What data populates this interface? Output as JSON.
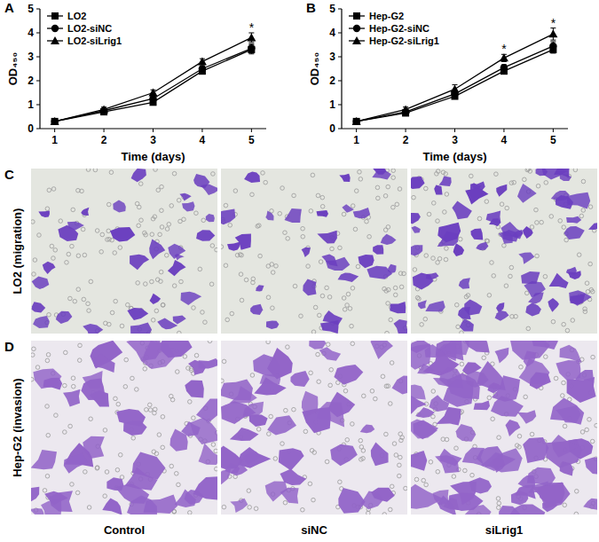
{
  "chart_data": [
    {
      "type": "line",
      "panel": "A",
      "y_label": "OD₄₅₀",
      "x_label": "Time (days)",
      "x": [
        1,
        2,
        3,
        4,
        5
      ],
      "xlim": [
        0.7,
        5.3
      ],
      "xticks": [
        1,
        2,
        3,
        4,
        5
      ],
      "ylim": [
        0,
        5
      ],
      "yticks": [
        0,
        1,
        2,
        3,
        4,
        5
      ],
      "legend": "upper left",
      "series": [
        {
          "name": "LO2",
          "color": "#000000",
          "marker": "square",
          "values": [
            0.3,
            0.7,
            1.1,
            2.4,
            3.3
          ],
          "errors": [
            0.05,
            0.08,
            0.1,
            0.12,
            0.18
          ]
        },
        {
          "name": "LO2-siNC",
          "color": "#000000",
          "marker": "circle",
          "values": [
            0.3,
            0.75,
            1.25,
            2.5,
            3.35
          ],
          "errors": [
            0.05,
            0.08,
            0.12,
            0.12,
            0.18
          ]
        },
        {
          "name": "LO2-siLrig1",
          "color": "#000000",
          "marker": "triangle",
          "values": [
            0.3,
            0.8,
            1.5,
            2.8,
            3.8
          ],
          "errors": [
            0.05,
            0.1,
            0.12,
            0.12,
            0.2
          ]
        }
      ],
      "annotations": [
        {
          "x": 5,
          "text": "*"
        }
      ]
    },
    {
      "type": "line",
      "panel": "B",
      "y_label": "OD₄₅₀",
      "x_label": "Time (days)",
      "x": [
        1,
        2,
        3,
        4,
        5
      ],
      "xlim": [
        0.7,
        5.3
      ],
      "xticks": [
        1,
        2,
        3,
        4,
        5
      ],
      "ylim": [
        0,
        5
      ],
      "yticks": [
        0,
        1,
        2,
        3,
        4,
        5
      ],
      "legend": "upper left",
      "series": [
        {
          "name": "Hep-G2",
          "color": "#000000",
          "marker": "square",
          "values": [
            0.3,
            0.65,
            1.35,
            2.4,
            3.3
          ],
          "errors": [
            0.05,
            0.08,
            0.1,
            0.12,
            0.15
          ]
        },
        {
          "name": "Hep-G2-siNC",
          "color": "#000000",
          "marker": "circle",
          "values": [
            0.3,
            0.7,
            1.45,
            2.55,
            3.45
          ],
          "errors": [
            0.05,
            0.08,
            0.12,
            0.12,
            0.18
          ]
        },
        {
          "name": "Hep-G2-siLrig1",
          "color": "#000000",
          "marker": "triangle",
          "values": [
            0.3,
            0.8,
            1.65,
            2.95,
            3.95
          ],
          "errors": [
            0.05,
            0.1,
            0.18,
            0.15,
            0.25
          ]
        }
      ],
      "annotations": [
        {
          "x": 4,
          "text": "*"
        },
        {
          "x": 5,
          "text": "*"
        }
      ]
    }
  ],
  "image_panels": [
    {
      "panel": "C",
      "row_label": "LO2 (migration)"
    },
    {
      "panel": "D",
      "row_label": "Hep-G2 (invasion)"
    }
  ],
  "image_columns": [
    "Control",
    "siNC",
    "siLrig1"
  ]
}
